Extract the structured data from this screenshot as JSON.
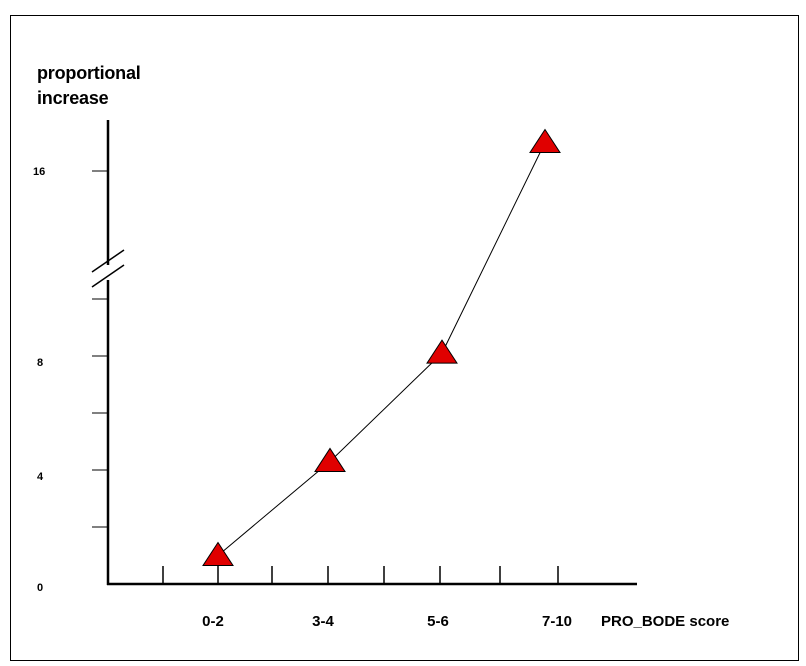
{
  "chart_data": {
    "type": "line",
    "categories": [
      "0-2",
      "3-4",
      "5-6",
      "7-10"
    ],
    "series": [
      {
        "values": [
          1,
          4.3,
          8.1,
          17
        ],
        "color": "#e00000",
        "marker": "triangle"
      }
    ],
    "ylabel_lines": [
      "proportional",
      "increase"
    ],
    "xlabel": "PRO_BODE score",
    "y_tick_labels": [
      "0",
      "4",
      "8",
      "16"
    ],
    "y_axis_break": true,
    "grid": false,
    "legend": "none"
  }
}
